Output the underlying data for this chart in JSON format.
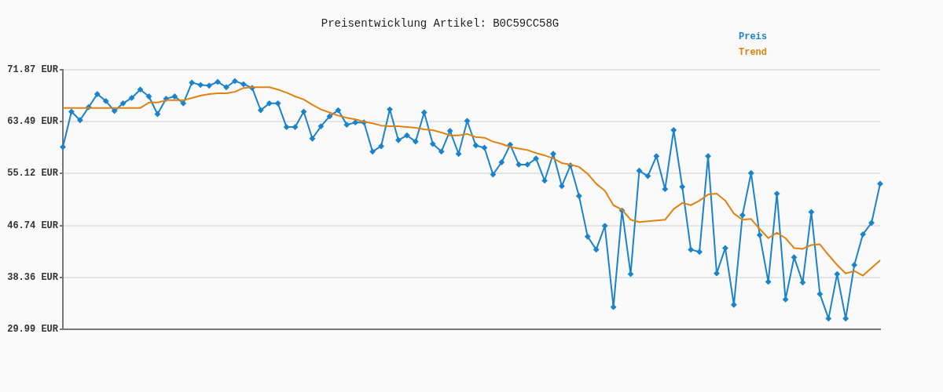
{
  "chart_data": {
    "type": "line",
    "title": "Preisentwicklung Artikel: B0C59CC58G",
    "categories": [
      null,
      null,
      null,
      null,
      null,
      null,
      null,
      null,
      null,
      null,
      null,
      null,
      null,
      null,
      null,
      null,
      null,
      null,
      null,
      null,
      null,
      null,
      null,
      null,
      null,
      null,
      null,
      null,
      null,
      null,
      null,
      null,
      null,
      null,
      null,
      null,
      null,
      null,
      null,
      null,
      null,
      null,
      null,
      null,
      null,
      null,
      null,
      null,
      null,
      null,
      null,
      null,
      null,
      null,
      null,
      null,
      null,
      null,
      null,
      null,
      null,
      null,
      null,
      null,
      null,
      null,
      null,
      null,
      null,
      null,
      null,
      null,
      null,
      null,
      null,
      null,
      null,
      null,
      null,
      null,
      null,
      null,
      null,
      null,
      null,
      null,
      null,
      null,
      null,
      null,
      null,
      null,
      null,
      null,
      null,
      null
    ],
    "series": [
      {
        "name": "Preis",
        "color": "#1a83cc",
        "marker": "diamond",
        "values": [
          59.39,
          65.08,
          63.72,
          65.82,
          67.92,
          66.8,
          65.2,
          66.43,
          67.3,
          68.66,
          67.55,
          64.7,
          67.18,
          67.55,
          66.43,
          69.77,
          69.4,
          69.28,
          69.89,
          69.03,
          70.02,
          69.52,
          68.91,
          65.32,
          66.43,
          66.43,
          62.6,
          62.6,
          65.08,
          60.75,
          62.73,
          64.33,
          65.32,
          62.98,
          63.35,
          63.35,
          58.65,
          59.52,
          65.45,
          60.5,
          61.25,
          60.26,
          64.95,
          59.89,
          58.65,
          61.99,
          58.28,
          63.59,
          59.64,
          59.27,
          54.95,
          56.92,
          59.76,
          56.55,
          56.55,
          57.54,
          53.96,
          58.28,
          53.09,
          56.43,
          51.49,
          44.94,
          42.84,
          46.67,
          33.57,
          49.14,
          38.89,
          55.56,
          54.7,
          57.91,
          52.6,
          62.11,
          52.97,
          42.84,
          42.47,
          57.91,
          39.01,
          43.09,
          33.94,
          48.4,
          55.19,
          45.19,
          37.65,
          51.86,
          34.81,
          41.6,
          37.53,
          48.89,
          35.67,
          31.72,
          38.89,
          31.72,
          40.37,
          45.31,
          47.16,
          53.46
        ]
      },
      {
        "name": "Trend",
        "color": "#e0820f",
        "marker": "none",
        "values": [
          65.69,
          65.69,
          65.69,
          65.69,
          65.69,
          65.69,
          65.69,
          65.69,
          65.69,
          65.69,
          66.56,
          66.56,
          66.93,
          66.93,
          66.93,
          67.3,
          67.67,
          67.92,
          68.04,
          68.04,
          68.29,
          68.91,
          69.03,
          69.03,
          69.03,
          68.66,
          68.16,
          67.55,
          67.05,
          66.19,
          65.45,
          64.95,
          64.46,
          64.09,
          63.84,
          63.47,
          63.22,
          62.85,
          62.73,
          62.73,
          62.6,
          62.48,
          62.23,
          62.11,
          61.74,
          61.25,
          61.25,
          61.49,
          61.0,
          60.88,
          60.26,
          59.89,
          59.39,
          59.15,
          58.9,
          58.41,
          58.04,
          57.54,
          56.8,
          56.55,
          56.18,
          55.07,
          53.46,
          52.35,
          50.0,
          49.26,
          47.66,
          47.29,
          47.41,
          47.53,
          47.66,
          49.39,
          50.37,
          50.0,
          50.74,
          51.73,
          51.86,
          50.74,
          48.65,
          47.66,
          47.78,
          46.17,
          44.69,
          45.56,
          44.69,
          43.09,
          42.96,
          43.58,
          43.7,
          41.97,
          40.37,
          39.01,
          39.38,
          38.64,
          39.87,
          41.11
        ]
      }
    ],
    "ylim": [
      29.99,
      71.87
    ],
    "yticks": [
      {
        "value": 29.99,
        "label": "29.99 EUR"
      },
      {
        "value": 38.36,
        "label": "38.36 EUR"
      },
      {
        "value": 46.74,
        "label": "46.74 EUR"
      },
      {
        "value": 55.12,
        "label": "55.12 EUR"
      },
      {
        "value": 63.49,
        "label": "63.49 EUR"
      },
      {
        "value": 71.87,
        "label": "71.87 EUR"
      }
    ],
    "grid": "y",
    "legend": "top right",
    "tick_labels": "y",
    "line_style": "solid"
  }
}
